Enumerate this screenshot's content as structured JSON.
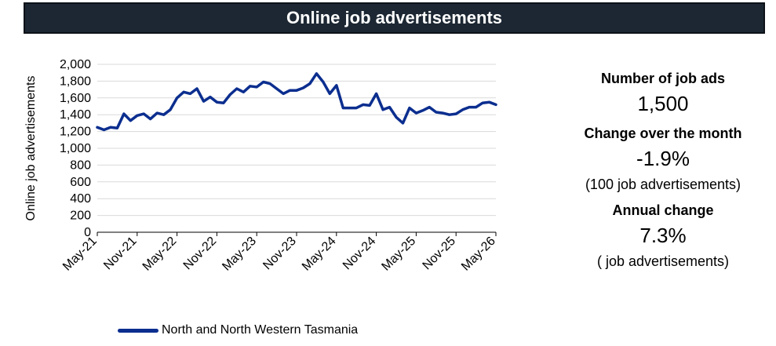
{
  "header": {
    "title": "Online job advertisements"
  },
  "colors": {
    "banner_bg": "#1c2733",
    "series": "#0b2e8f",
    "grid": "#d9d9d9"
  },
  "chart_data": {
    "type": "line",
    "ylabel": "Online job advertisements",
    "ylim": [
      0,
      2000
    ],
    "yticks": [
      "0",
      "200",
      "400",
      "600",
      "800",
      "1,000",
      "1,200",
      "1,400",
      "1,600",
      "1,800",
      "2,000"
    ],
    "xticks": [
      "May-21",
      "Nov-21",
      "May-22",
      "Nov-22",
      "May-23",
      "Nov-23",
      "May-24",
      "Nov-24",
      "May-25",
      "Nov-25",
      "May-26"
    ],
    "grid": true,
    "legend_position": "bottom",
    "series": [
      {
        "name": "North and North Western Tasmania",
        "x": [
          "May-21",
          "Jun-21",
          "Jul-21",
          "Aug-21",
          "Sep-21",
          "Oct-21",
          "Nov-21",
          "Dec-21",
          "Jan-22",
          "Feb-22",
          "Mar-22",
          "Apr-22",
          "May-22",
          "Jun-22",
          "Jul-22",
          "Aug-22",
          "Sep-22",
          "Oct-22",
          "Nov-22",
          "Dec-22",
          "Jan-23",
          "Feb-23",
          "Mar-23",
          "Apr-23",
          "May-23",
          "Jun-23",
          "Jul-23",
          "Aug-23",
          "Sep-23",
          "Oct-23",
          "Nov-23",
          "Dec-23",
          "Jan-24",
          "Feb-24",
          "Mar-24",
          "Apr-24",
          "May-24",
          "Jun-24",
          "Jul-24",
          "Aug-24",
          "Sep-24",
          "Oct-24",
          "Nov-24",
          "Dec-24",
          "Jan-25",
          "Feb-25",
          "Mar-25",
          "Apr-25",
          "May-25",
          "Jun-25",
          "Jul-25",
          "Aug-25",
          "Sep-25",
          "Oct-25",
          "Nov-25",
          "Dec-25",
          "Jan-26",
          "Feb-26",
          "Mar-26",
          "Apr-26",
          "May-26"
        ],
        "values": [
          1250,
          1220,
          1250,
          1240,
          1410,
          1330,
          1390,
          1410,
          1350,
          1420,
          1400,
          1460,
          1600,
          1670,
          1650,
          1710,
          1560,
          1610,
          1550,
          1540,
          1640,
          1710,
          1670,
          1740,
          1730,
          1790,
          1770,
          1710,
          1650,
          1690,
          1690,
          1720,
          1770,
          1890,
          1790,
          1650,
          1750,
          1480,
          1480,
          1480,
          1520,
          1510,
          1650,
          1460,
          1490,
          1370,
          1300,
          1480,
          1420,
          1450,
          1490,
          1430,
          1420,
          1400,
          1410,
          1460,
          1490,
          1490,
          1540,
          1550,
          1520
        ]
      }
    ]
  },
  "stats": {
    "number_heading": "Number of job ads",
    "number_value": "1,500",
    "month_heading": "Change over the month",
    "month_value": "-1.9%",
    "month_note": "(100 job advertisements)",
    "annual_heading": "Annual change",
    "annual_value": "7.3%",
    "annual_note": "( job advertisements)"
  }
}
